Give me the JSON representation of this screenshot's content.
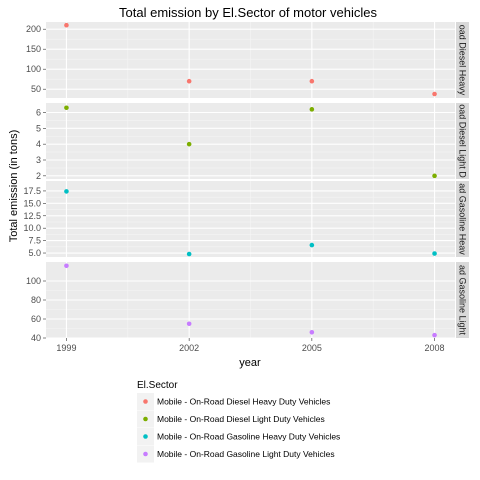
{
  "chart_data": {
    "type": "scatter",
    "title": "Total emission by El.Sector of motor vehicles",
    "xlabel": "year",
    "ylabel": "Total emission (in tons)",
    "x": [
      1999,
      2002,
      2005,
      2008
    ],
    "x_ticks": [
      "1999",
      "2002",
      "2005",
      "2008"
    ],
    "xlim": [
      1998.5,
      2008.5
    ],
    "legend": {
      "title": "El.Sector",
      "position": "bottom"
    },
    "facets": [
      {
        "strip": "Mobile - On-Road Diesel Heavy Duty Vehicles",
        "strip_visible": "oad Diesel Heavy",
        "series": "Mobile - On-Road Diesel Heavy Duty Vehicles",
        "values": [
          210,
          70,
          70,
          38
        ],
        "ylim": [
          28,
          218
        ],
        "yticks": [
          50,
          100,
          150,
          200
        ],
        "ytick_labels": [
          "50",
          "100",
          "150",
          "200"
        ]
      },
      {
        "strip": "Mobile - On-Road Diesel Light Duty Vehicles",
        "strip_visible": "oad Diesel Light D",
        "series": "Mobile - On-Road Diesel Light Duty Vehicles",
        "values": [
          6.3,
          4.0,
          6.2,
          2.0
        ],
        "ylim": [
          1.8,
          6.6
        ],
        "yticks": [
          2,
          3,
          4,
          5,
          6
        ],
        "ytick_labels": [
          "2",
          "3",
          "4",
          "5",
          "6"
        ]
      },
      {
        "strip": "Mobile - On-Road Gasoline Heavy Duty Vehicles",
        "strip_visible": "ad Gasoline Heav",
        "series": "Mobile - On-Road Gasoline Heavy Duty Vehicles",
        "values": [
          17.4,
          4.8,
          6.6,
          4.9
        ],
        "ylim": [
          4.2,
          19.5
        ],
        "yticks": [
          5.0,
          7.5,
          10.0,
          12.5,
          15.0,
          17.5
        ],
        "ytick_labels": [
          "5.0",
          "7.5",
          "10.0",
          "12.5",
          "15.0",
          "17.5"
        ]
      },
      {
        "strip": "Mobile - On-Road Gasoline Light Duty Vehicles",
        "strip_visible": "ad Gasoline Light",
        "series": "Mobile - On-Road Gasoline Light Duty Vehicles",
        "values": [
          116,
          55,
          46,
          43
        ],
        "ylim": [
          40,
          120
        ],
        "yticks": [
          40,
          60,
          80,
          100
        ],
        "ytick_labels": [
          "40",
          "60",
          "80",
          "100"
        ]
      }
    ],
    "series": [
      {
        "name": "Mobile - On-Road Diesel Heavy Duty Vehicles",
        "color": "#F8766D"
      },
      {
        "name": "Mobile - On-Road Diesel Light Duty Vehicles",
        "color": "#7CAE00"
      },
      {
        "name": "Mobile - On-Road Gasoline Heavy Duty Vehicles",
        "color": "#00BFC4"
      },
      {
        "name": "Mobile - On-Road Gasoline Light Duty Vehicles",
        "color": "#C77CFF"
      }
    ],
    "grid": true
  }
}
